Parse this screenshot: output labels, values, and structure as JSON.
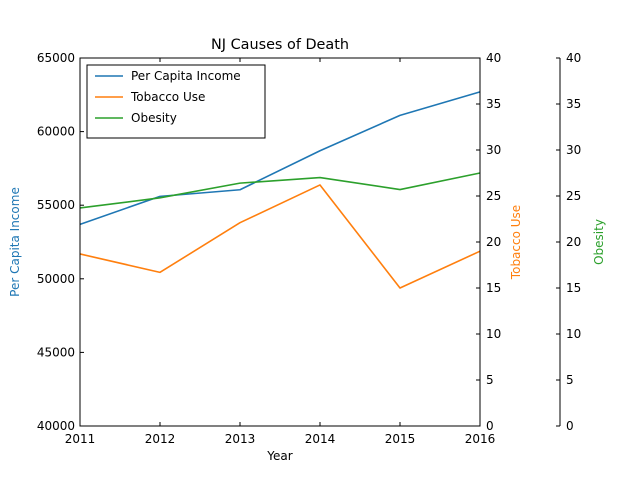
{
  "chart_data": {
    "type": "line",
    "title": "NJ Causes of Death",
    "xlabel": "Year",
    "x": [
      2011,
      2012,
      2013,
      2014,
      2015,
      2016
    ],
    "xlim": [
      2011,
      2016
    ],
    "x_ticks": [
      "2011",
      "2012",
      "2013",
      "2014",
      "2015",
      "2016"
    ],
    "grid": false,
    "legend": "top-left",
    "axes": [
      {
        "label": "Per Capita Income",
        "color": "#1f77b4",
        "ylim": [
          40000,
          65000
        ],
        "ticks": [
          "40000",
          "45000",
          "50000",
          "55000",
          "60000",
          "65000"
        ],
        "side": "left"
      },
      {
        "label": "Tobacco Use",
        "color": "#ff7f0e",
        "ylim": [
          0,
          40
        ],
        "ticks": [
          "0",
          "5",
          "10",
          "15",
          "20",
          "25",
          "30",
          "35",
          "40"
        ],
        "side": "right"
      },
      {
        "label": "Obesity",
        "color": "#2ca02c",
        "ylim": [
          0,
          40
        ],
        "ticks": [
          "0",
          "5",
          "10",
          "15",
          "20",
          "25",
          "30",
          "35",
          "40"
        ],
        "side": "right-offset"
      }
    ],
    "series": [
      {
        "name": "Per Capita Income",
        "axis": 0,
        "color": "#1f77b4",
        "values": [
          53700,
          55600,
          56050,
          58700,
          61100,
          62700
        ]
      },
      {
        "name": "Tobacco Use",
        "axis": 1,
        "color": "#ff7f0e",
        "values": [
          18.7,
          16.7,
          22.1,
          26.2,
          15.0,
          19.0
        ]
      },
      {
        "name": "Obesity",
        "axis": 2,
        "color": "#2ca02c",
        "values": [
          23.7,
          24.8,
          26.4,
          27.0,
          25.7,
          27.5
        ]
      }
    ]
  }
}
